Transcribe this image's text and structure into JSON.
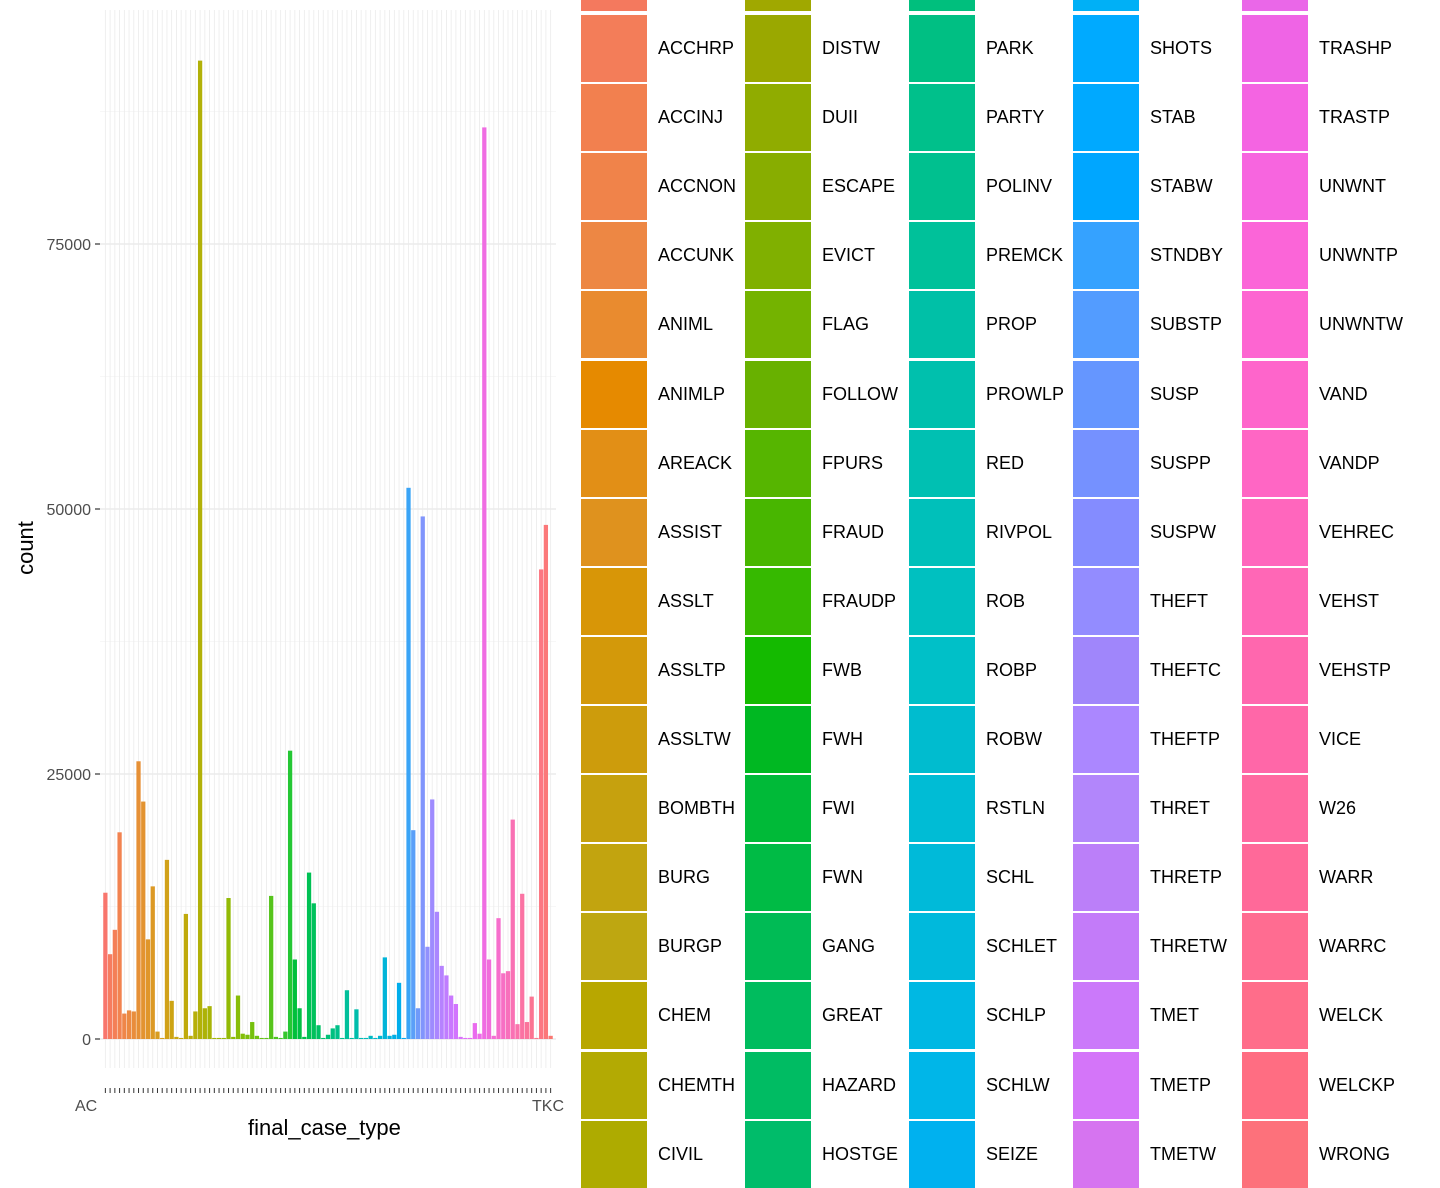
{
  "chart_data": {
    "type": "bar",
    "xlabel": "final_case_type",
    "ylabel": "count",
    "y_ticks": [
      "0",
      "25000",
      "50000",
      "75000"
    ],
    "x_tick_text": "AC",
    "x_tick_tail": "TKC",
    "grid": true,
    "legend_placement": "right",
    "bars": [
      {
        "value": 13800,
        "color": "#f8766d"
      },
      {
        "value": 8000,
        "color": "#f67c5f"
      },
      {
        "value": 10300,
        "color": "#f47f57"
      },
      {
        "value": 19500,
        "color": "#f28350"
      },
      {
        "value": 2400,
        "color": "#ef8649"
      },
      {
        "value": 2700,
        "color": "#ec8a43"
      },
      {
        "value": 2600,
        "color": "#e98d3c"
      },
      {
        "value": 26200,
        "color": "#e69036"
      },
      {
        "value": 22400,
        "color": "#e39330"
      },
      {
        "value": 9400,
        "color": "#e0962a"
      },
      {
        "value": 14400,
        "color": "#dc9925"
      },
      {
        "value": 700,
        "color": "#d89c20"
      },
      {
        "value": 100,
        "color": "#d59f1c"
      },
      {
        "value": 16900,
        "color": "#d1a118"
      },
      {
        "value": 3600,
        "color": "#cda414"
      },
      {
        "value": 200,
        "color": "#c9a611"
      },
      {
        "value": 100,
        "color": "#c5a80e"
      },
      {
        "value": 11800,
        "color": "#c0aa0c"
      },
      {
        "value": 300,
        "color": "#bbad0a"
      },
      {
        "value": 2600,
        "color": "#b7af09"
      },
      {
        "value": 92300,
        "color": "#b2b108"
      },
      {
        "value": 2900,
        "color": "#adb207"
      },
      {
        "value": 3100,
        "color": "#a8b406"
      },
      {
        "value": 100,
        "color": "#a3b606"
      },
      {
        "value": 100,
        "color": "#9eb706"
      },
      {
        "value": 100,
        "color": "#99b906"
      },
      {
        "value": 13300,
        "color": "#93ba06"
      },
      {
        "value": 200,
        "color": "#8dbb06"
      },
      {
        "value": 4100,
        "color": "#88bd07"
      },
      {
        "value": 500,
        "color": "#82be08"
      },
      {
        "value": 400,
        "color": "#7bbf0a"
      },
      {
        "value": 1600,
        "color": "#75c00c"
      },
      {
        "value": 300,
        "color": "#6ec10f"
      },
      {
        "value": 100,
        "color": "#67c213"
      },
      {
        "value": 100,
        "color": "#5fc317"
      },
      {
        "value": 13500,
        "color": "#56c41c"
      },
      {
        "value": 200,
        "color": "#4dc521"
      },
      {
        "value": 100,
        "color": "#42c627"
      },
      {
        "value": 700,
        "color": "#35c62d"
      },
      {
        "value": 27200,
        "color": "#24c734"
      },
      {
        "value": 7500,
        "color": "#00c03b"
      },
      {
        "value": 2900,
        "color": "#00c043"
      },
      {
        "value": 200,
        "color": "#00c04b"
      },
      {
        "value": 15700,
        "color": "#00c154"
      },
      {
        "value": 12800,
        "color": "#00c15c"
      },
      {
        "value": 1300,
        "color": "#00c165"
      },
      {
        "value": 100,
        "color": "#00c16e"
      },
      {
        "value": 400,
        "color": "#00c177"
      },
      {
        "value": 1000,
        "color": "#00c080"
      },
      {
        "value": 1300,
        "color": "#00c089"
      },
      {
        "value": 100,
        "color": "#00c092"
      },
      {
        "value": 4600,
        "color": "#00bf9a"
      },
      {
        "value": 100,
        "color": "#00bea3"
      },
      {
        "value": 2800,
        "color": "#00bdab"
      },
      {
        "value": 100,
        "color": "#00bcb3"
      },
      {
        "value": 100,
        "color": "#00bbbb"
      },
      {
        "value": 300,
        "color": "#00b9c3"
      },
      {
        "value": 100,
        "color": "#00b8ca"
      },
      {
        "value": 300,
        "color": "#00b6d1"
      },
      {
        "value": 7700,
        "color": "#00b4d8"
      },
      {
        "value": 300,
        "color": "#00b2df"
      },
      {
        "value": 400,
        "color": "#00afe5"
      },
      {
        "value": 5300,
        "color": "#00adeb"
      },
      {
        "value": 100,
        "color": "#00aaf0"
      },
      {
        "value": 52000,
        "color": "#3aa4f6"
      },
      {
        "value": 19700,
        "color": "#5a9ff8"
      },
      {
        "value": 2900,
        "color": "#6f9afa"
      },
      {
        "value": 49300,
        "color": "#8195fc"
      },
      {
        "value": 8700,
        "color": "#9190fd"
      },
      {
        "value": 22600,
        "color": "#9e8bfe"
      },
      {
        "value": 12000,
        "color": "#ab86ff"
      },
      {
        "value": 6900,
        "color": "#b682ff"
      },
      {
        "value": 6000,
        "color": "#c07dff"
      },
      {
        "value": 4100,
        "color": "#c978ff"
      },
      {
        "value": 3300,
        "color": "#d274fe"
      },
      {
        "value": 200,
        "color": "#da70fd"
      },
      {
        "value": 100,
        "color": "#e16cfb"
      },
      {
        "value": 100,
        "color": "#e76bf3"
      },
      {
        "value": 1500,
        "color": "#ea6bee"
      },
      {
        "value": 500,
        "color": "#ed6be8"
      },
      {
        "value": 86000,
        "color": "#ef6ce2"
      },
      {
        "value": 7500,
        "color": "#f16ddb"
      },
      {
        "value": 300,
        "color": "#f36ed4"
      },
      {
        "value": 11400,
        "color": "#f66ecc"
      },
      {
        "value": 6200,
        "color": "#f76fc4"
      },
      {
        "value": 6400,
        "color": "#f870bc"
      },
      {
        "value": 20700,
        "color": "#f971b4"
      },
      {
        "value": 1400,
        "color": "#fa72ac"
      },
      {
        "value": 13700,
        "color": "#fb73a3"
      },
      {
        "value": 1600,
        "color": "#fb749b"
      },
      {
        "value": 4000,
        "color": "#fb7592"
      },
      {
        "value": 100,
        "color": "#fc768a"
      },
      {
        "value": 44300,
        "color": "#fc7782"
      },
      {
        "value": 48500,
        "color": "#fb7879"
      },
      {
        "value": 300,
        "color": "#fa7872"
      }
    ],
    "legend": {
      "columns": [
        {
          "labels": [
            "ACCHRP",
            "ACCINJ",
            "ACCNON",
            "ACCUNK",
            "ANIML",
            "ANIMLP",
            "AREACK",
            "ASSIST",
            "ASSLT",
            "ASSLTP",
            "ASSLTW",
            "BOMBTH",
            "BURG",
            "BURGP",
            "CHEM",
            "CHEMTH",
            "CIVIL"
          ],
          "colors": [
            "#f37d59",
            "#f2804f",
            "#f0834a",
            "#ed8744",
            "#e98b2f",
            "#e68a00",
            "#e28f16",
            "#df921e",
            "#d89607",
            "#d3990a",
            "#cd9c0c",
            "#c6a10e",
            "#c2a40f",
            "#bea711",
            "#b8a700",
            "#b3aa03",
            "#aeab00"
          ],
          "top_color": "#f4795e"
        },
        {
          "labels": [
            "DISTW",
            "DUII",
            "ESCAPE",
            "EVICT",
            "FLAG",
            "FOLLOW",
            "FPURS",
            "FRAUD",
            "FRAUDP",
            "FWB",
            "FWH",
            "FWI",
            "FWN",
            "GANG",
            "GREAT",
            "HAZARD",
            "HOSTGE"
          ],
          "colors": [
            "#9aa800",
            "#90ac00",
            "#88ad00",
            "#80b000",
            "#74b300",
            "#68b100",
            "#56b500",
            "#48b600",
            "#36b900",
            "#14ba00",
            "#00b822",
            "#00ba38",
            "#00bb45",
            "#00bb55",
            "#00bc5e",
            "#00bc63",
            "#00bc6a"
          ],
          "top_color": "#a0a800"
        },
        {
          "labels": [
            "PARK",
            "PARTY",
            "POLINV",
            "PREMCK",
            "PROP",
            "PROWLP",
            "RED",
            "RIVPOL",
            "ROB",
            "ROBP",
            "ROBW",
            "RSTLN",
            "SCHL",
            "SCHLET",
            "SCHLP",
            "SCHLW",
            "SEIZE"
          ],
          "colors": [
            "#00bf83",
            "#00c08b",
            "#00c08f",
            "#00c19a",
            "#00c0a7",
            "#00c0ad",
            "#00c0b2",
            "#00c0ba",
            "#00c0c0",
            "#00c0c8",
            "#00bccf",
            "#00bcd5",
            "#00bad9",
            "#00b9dc",
            "#00b8e3",
            "#00b6e8",
            "#00b1ef"
          ],
          "top_color": "#00bf7d"
        },
        {
          "labels": [
            "SHOTS",
            "STAB",
            "STABW",
            "STNDBY",
            "SUBSTP",
            "SUSP",
            "SUSPP",
            "SUSPW",
            "THEFT",
            "THEFTC",
            "THEFTP",
            "THRET",
            "THRETP",
            "THRETW",
            "TMET",
            "TMETP",
            "TMETW"
          ],
          "colors": [
            "#00aaff",
            "#00a9ff",
            "#00a6ff",
            "#35a2ff",
            "#539cff",
            "#6596ff",
            "#7591ff",
            "#848cff",
            "#938cff",
            "#a086fb",
            "#ab87ff",
            "#b286fb",
            "#bb7ff9",
            "#c37bf9",
            "#cb79fa",
            "#d475f9",
            "#d674f0"
          ],
          "top_color": "#00b0f6"
        },
        {
          "labels": [
            "TRASHP",
            "TRASTP",
            "UNWNT",
            "UNWNTP",
            "UNWNTW",
            "VAND",
            "VANDP",
            "VEHREC",
            "VEHST",
            "VEHSTP",
            "VICE",
            "W26",
            "WARR",
            "WARRC",
            "WELCK",
            "WELCKP",
            "WRONG"
          ],
          "colors": [
            "#ef64e5",
            "#f464e2",
            "#f765df",
            "#fb65d8",
            "#fd65d1",
            "#fe65cb",
            "#ff66c4",
            "#ff66bd",
            "#ff67b6",
            "#ff67ae",
            "#ff67a8",
            "#ff69a0",
            "#ff6999",
            "#ff6c91",
            "#ff6d8a",
            "#ff6d82",
            "#fd717b"
          ],
          "top_color": "#ea67e8"
        }
      ]
    }
  }
}
